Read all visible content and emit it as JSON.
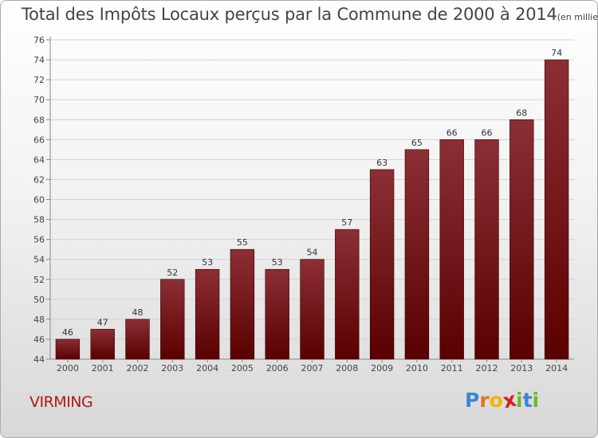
{
  "chart_data": {
    "type": "bar",
    "title": "Total des Impôts Locaux perçus par la Commune de 2000 à 2014",
    "unit_note": "(en milliers d'€)",
    "categories": [
      "2000",
      "2001",
      "2002",
      "2003",
      "2004",
      "2005",
      "2006",
      "2007",
      "2008",
      "2009",
      "2010",
      "2011",
      "2012",
      "2013",
      "2014"
    ],
    "values": [
      46,
      47,
      48,
      52,
      53,
      55,
      53,
      54,
      57,
      63,
      65,
      66,
      66,
      68,
      74
    ],
    "ylim": [
      44,
      76
    ],
    "ytick_step": 2,
    "grid": true,
    "xlabel": "",
    "ylabel": "",
    "bar_color_top": "#8b2f35",
    "bar_color_bottom": "#5a0000"
  },
  "footer": {
    "commune": "VIRMING",
    "brand_letters": [
      "P",
      "r",
      "o",
      "x",
      "i",
      "t",
      "i"
    ],
    "brand_colors": [
      "#3a86d4",
      "#e8731c",
      "#f0b400",
      "#d42020",
      "#6cb82c",
      "#3a86d4",
      "#6cb82c"
    ]
  }
}
